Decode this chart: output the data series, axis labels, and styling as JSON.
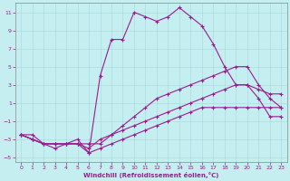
{
  "xlabel": "Windchill (Refroidissement éolien,°C)",
  "xlim": [
    -0.5,
    23.5
  ],
  "ylim": [
    -5.5,
    12
  ],
  "xticks": [
    0,
    1,
    2,
    3,
    4,
    5,
    6,
    7,
    8,
    9,
    10,
    11,
    12,
    13,
    14,
    15,
    16,
    17,
    18,
    19,
    20,
    21,
    22,
    23
  ],
  "yticks": [
    -5,
    -3,
    -1,
    1,
    3,
    5,
    7,
    9,
    11
  ],
  "bg_color": "#c5eef0",
  "line_color": "#9b1b8e",
  "grid_color": "#a8d8da",
  "line1_x": [
    0,
    1,
    2,
    3,
    4,
    5,
    6,
    7,
    8,
    9,
    10,
    11,
    12,
    13,
    14,
    15,
    16,
    17,
    18,
    19,
    20,
    21,
    22,
    23
  ],
  "line1_y": [
    -2.5,
    -2.5,
    -3.5,
    -4.0,
    -3.5,
    -3.0,
    -4.5,
    4.0,
    8.0,
    8.0,
    11.0,
    10.5,
    10.0,
    10.5,
    11.5,
    10.5,
    9.5,
    7.5,
    5.0,
    3.0,
    3.0,
    1.5,
    -0.5,
    -0.5
  ],
  "line2_x": [
    0,
    1,
    2,
    3,
    4,
    5,
    6,
    7,
    8,
    9,
    10,
    11,
    12,
    13,
    14,
    15,
    16,
    17,
    18,
    19,
    20,
    21,
    22,
    23
  ],
  "line2_y": [
    -2.5,
    -3.0,
    -3.5,
    -3.5,
    -3.5,
    -3.5,
    -3.5,
    -3.5,
    -2.5,
    -1.5,
    -0.5,
    0.5,
    1.5,
    2.0,
    2.5,
    3.0,
    3.5,
    4.0,
    4.5,
    5.0,
    5.0,
    3.0,
    1.5,
    0.5
  ],
  "line3_x": [
    0,
    1,
    2,
    3,
    4,
    5,
    6,
    7,
    8,
    9,
    10,
    11,
    12,
    13,
    14,
    15,
    16,
    17,
    18,
    19,
    20,
    21,
    22,
    23
  ],
  "line3_y": [
    -2.5,
    -3.0,
    -3.5,
    -3.5,
    -3.5,
    -3.5,
    -4.0,
    -3.0,
    -2.5,
    -2.0,
    -1.5,
    -1.0,
    -0.5,
    0.0,
    0.5,
    1.0,
    1.5,
    2.0,
    2.5,
    3.0,
    3.0,
    2.5,
    2.0,
    2.0
  ],
  "line4_x": [
    0,
    1,
    2,
    3,
    4,
    5,
    6,
    7,
    8,
    9,
    10,
    11,
    12,
    13,
    14,
    15,
    16,
    17,
    18,
    19,
    20,
    21,
    22,
    23
  ],
  "line4_y": [
    -2.5,
    -3.0,
    -3.5,
    -3.5,
    -3.5,
    -3.5,
    -4.5,
    -4.0,
    -3.5,
    -3.0,
    -2.5,
    -2.0,
    -1.5,
    -1.0,
    -0.5,
    0.0,
    0.5,
    0.5,
    0.5,
    0.5,
    0.5,
    0.5,
    0.5,
    0.5
  ]
}
